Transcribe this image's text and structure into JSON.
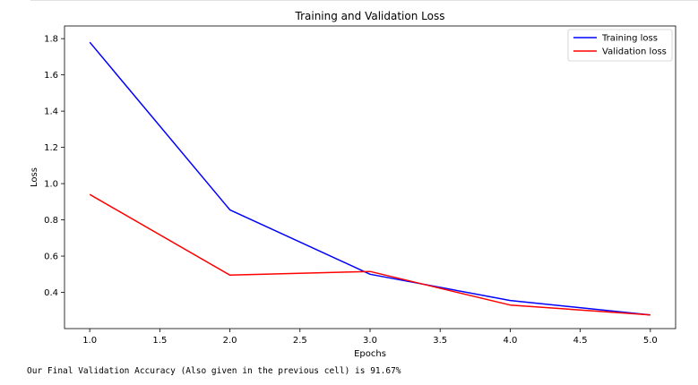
{
  "chart_data": {
    "type": "line",
    "title": "Training and Validation Loss",
    "xlabel": "Epochs",
    "ylabel": "Loss",
    "x": [
      1.0,
      2.0,
      3.0,
      4.0,
      5.0
    ],
    "xlim": [
      0.82,
      5.18
    ],
    "ylim": [
      0.2,
      1.87
    ],
    "xticks": [
      1.0,
      1.5,
      2.0,
      2.5,
      3.0,
      3.5,
      4.0,
      4.5,
      5.0
    ],
    "xtick_labels": [
      "1.0",
      "1.5",
      "2.0",
      "2.5",
      "3.0",
      "3.5",
      "4.0",
      "4.5",
      "5.0"
    ],
    "yticks": [
      0.4,
      0.6,
      0.8,
      1.0,
      1.2,
      1.4,
      1.6,
      1.8
    ],
    "ytick_labels": [
      "0.4",
      "0.6",
      "0.8",
      "1.0",
      "1.2",
      "1.4",
      "1.6",
      "1.8"
    ],
    "grid": false,
    "legend_position": "top-right",
    "series": [
      {
        "name": "Training loss",
        "color": "#0000ff",
        "values": [
          1.78,
          0.855,
          0.5,
          0.355,
          0.275
        ]
      },
      {
        "name": "Validation loss",
        "color": "#ff0000",
        "values": [
          0.94,
          0.495,
          0.515,
          0.33,
          0.275
        ]
      }
    ]
  },
  "output": {
    "text": "Our Final Validation Accuracy (Also given in the previous cell) is 91.67%"
  }
}
